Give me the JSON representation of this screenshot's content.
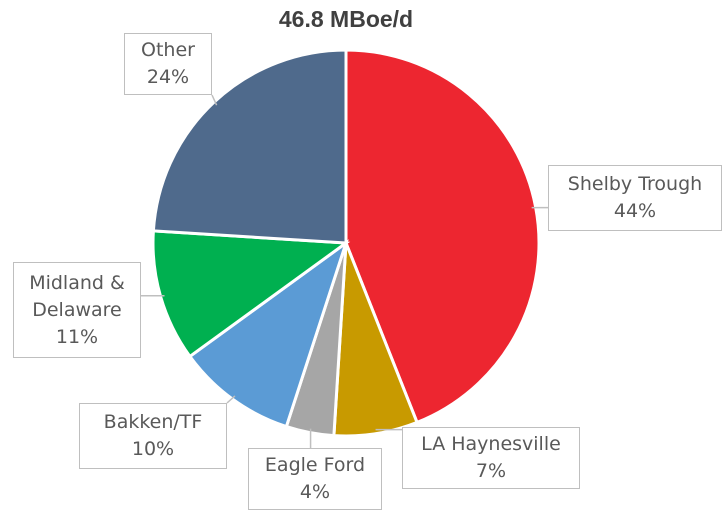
{
  "chart_data": {
    "type": "pie",
    "title": "46.8 MBoe/d",
    "categories": [
      "Shelby Trough",
      "LA Haynesville",
      "Eagle Ford",
      "Bakken/TF",
      "Midland & Delaware",
      "Other"
    ],
    "values": [
      44,
      7,
      4,
      10,
      11,
      24
    ],
    "value_labels": [
      "44%",
      "7%",
      "4%",
      "10%",
      "11%",
      "24%"
    ],
    "colors": [
      "#ed2630",
      "#c89a00",
      "#a6a6a6",
      "#5b9bd5",
      "#00b050",
      "#4f6a8c"
    ]
  }
}
